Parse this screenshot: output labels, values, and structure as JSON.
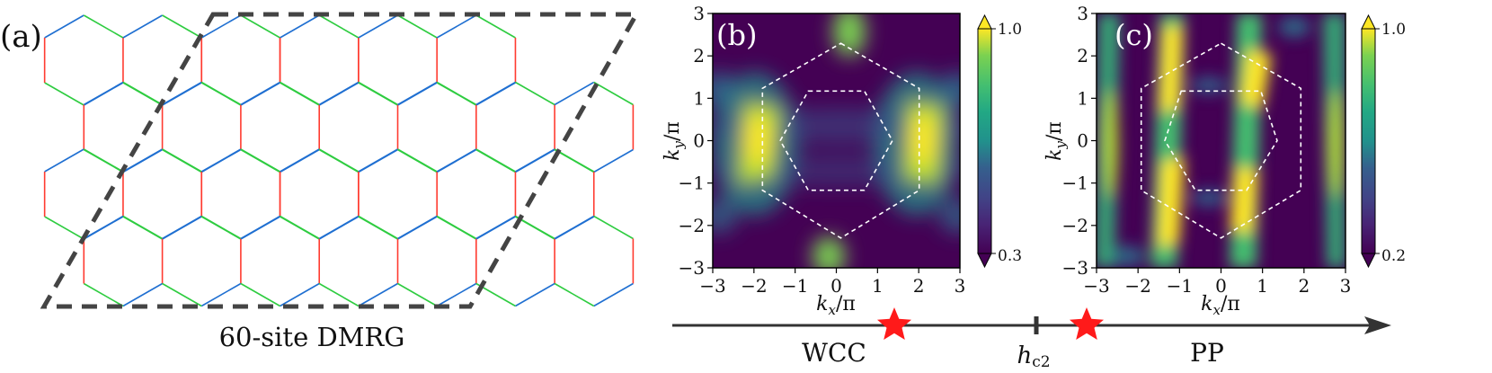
{
  "panels": {
    "a": {
      "label": "(a)",
      "caption": "60-site DMRG",
      "bond_colors": {
        "x": "#1f6fd1",
        "y": "#2ecc40",
        "z": "#ff3b30"
      },
      "frame_color": "#444444"
    },
    "b": {
      "label": "(b)",
      "xlabel_main": "k",
      "xlabel_sub": "x",
      "xlabel_rest": "/π",
      "ylabel_main": "k",
      "ylabel_sub": "y",
      "ylabel_rest": "/π",
      "xticks": [
        "−3",
        "−2",
        "−1",
        "0",
        "1",
        "2",
        "3"
      ],
      "yticks": [
        "3",
        "2",
        "1",
        "0",
        "−1",
        "−2",
        "−3"
      ],
      "colorbar": {
        "max": "1.0",
        "min": "0.3"
      }
    },
    "c": {
      "label": "(c)",
      "xlabel_main": "k",
      "xlabel_sub": "x",
      "xlabel_rest": "/π",
      "ylabel_main": "k",
      "ylabel_sub": "y",
      "ylabel_rest": "/π",
      "xticks": [
        "−3",
        "−2",
        "−1",
        "0",
        "1",
        "2",
        "3"
      ],
      "yticks": [
        "3",
        "2",
        "1",
        "0",
        "−1",
        "−2",
        "−3"
      ],
      "colorbar": {
        "max": "1.0",
        "min": "0.2"
      }
    }
  },
  "phase_axis": {
    "left_phase": "WCC",
    "critical_main": "h",
    "critical_sub": "c2",
    "right_phase": "PP"
  },
  "colors": {
    "star": "#ff1a1a",
    "cmap_low": "#440154",
    "cmap_high": "#fde725"
  }
}
